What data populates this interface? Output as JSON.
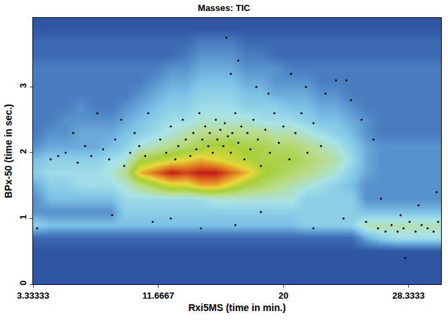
{
  "chart_data": {
    "type": "heatmap",
    "title": "Masses: TIC",
    "x_label": "Rxi5MS (time in min.)",
    "y_label": "BPx-50 (time in sec.)",
    "xlim": [
      3.33333,
      30.5
    ],
    "xticks": [
      3.33333,
      11.6667,
      20,
      28.3333
    ],
    "ylim": [
      0,
      4.05
    ],
    "yticks": [
      0,
      1,
      2,
      3
    ],
    "heatmap": {
      "x": [
        3.5,
        4.5,
        5.5,
        6.5,
        7.5,
        8.5,
        9.5,
        10.5,
        11.5,
        12.5,
        13.5,
        14.5,
        15.5,
        16.5,
        17.5,
        18.5,
        19.5,
        20.5,
        21.5,
        22.5,
        23.5,
        24.5,
        25.5,
        26.5,
        27.5,
        28.5,
        29.5,
        30.5
      ],
      "y": [
        0.1,
        0.3,
        0.5,
        0.7,
        0.9,
        1.1,
        1.3,
        1.5,
        1.7,
        1.9,
        2.1,
        2.3,
        2.5,
        2.7,
        2.9,
        3.1,
        3.3,
        3.5,
        3.7,
        3.9
      ],
      "z": [
        [
          0,
          0,
          0,
          0,
          0,
          0,
          0,
          0,
          0,
          0,
          0,
          0,
          0,
          0,
          0,
          0,
          0,
          0,
          0,
          0,
          0,
          0,
          0,
          0,
          0,
          0,
          0,
          0
        ],
        [
          0,
          0,
          0,
          0,
          0,
          0,
          0,
          0,
          0,
          0,
          0,
          0,
          0,
          0,
          0,
          0,
          0,
          0,
          0,
          0,
          0,
          0,
          0,
          0,
          0,
          0,
          0,
          0
        ],
        [
          0,
          0,
          0,
          0,
          0,
          0,
          0,
          0,
          0,
          0,
          0,
          0,
          0,
          0,
          0,
          0,
          0,
          0,
          0,
          0,
          0,
          0,
          0,
          0,
          0,
          0,
          0,
          0
        ],
        [
          0.5,
          0.5,
          0.5,
          0.5,
          0.5,
          0.5,
          0.5,
          0.5,
          0.5,
          0.5,
          0.5,
          0.5,
          0.5,
          0.5,
          0.5,
          0.5,
          0.5,
          0.5,
          0.5,
          0.5,
          0.5,
          0.5,
          2,
          3,
          3.5,
          3.5,
          3.5,
          3.5
        ],
        [
          3,
          2.5,
          2.5,
          2.5,
          2.5,
          2.5,
          2.5,
          2.5,
          2.5,
          2.5,
          2.5,
          2.5,
          2.5,
          2.5,
          2.5,
          2.5,
          2.5,
          2.5,
          3,
          3,
          3,
          3,
          4.5,
          4.5,
          4.5,
          4.5,
          4.5,
          4.5
        ],
        [
          1.5,
          1.5,
          1.5,
          1.5,
          1.5,
          1.5,
          3,
          3,
          3,
          3,
          3,
          3,
          3,
          3,
          3,
          3,
          3,
          3,
          3,
          3,
          3,
          3,
          2.5,
          2.5,
          2.5,
          2.5,
          2.5,
          2.5
        ],
        [
          1.5,
          2.5,
          2.5,
          2.5,
          2.5,
          2.5,
          3.5,
          3.5,
          3.5,
          3.5,
          3.5,
          3.5,
          4,
          4,
          4,
          4,
          4,
          4,
          3,
          3,
          3,
          3,
          1.5,
          1.5,
          1.5,
          1.5,
          1.5,
          1.5
        ],
        [
          2,
          3,
          3,
          3.5,
          3.5,
          3.5,
          4,
          5,
          6,
          7,
          7,
          8,
          8,
          7,
          6,
          5.5,
          5,
          4.5,
          4,
          3.5,
          3,
          2.5,
          1.5,
          1.5,
          1.5,
          1.5,
          1.5,
          1.5
        ],
        [
          3,
          3.5,
          3.5,
          3.5,
          3.5,
          4,
          5,
          8,
          9,
          10,
          9.5,
          10,
          10,
          9,
          8,
          6.5,
          6,
          5.5,
          5,
          4.5,
          4,
          3,
          2,
          1.5,
          1.5,
          1.5,
          1.5,
          1.5
        ],
        [
          2.5,
          3,
          3,
          3,
          3,
          3.5,
          4,
          6,
          6.5,
          7,
          7.5,
          8,
          7.5,
          7,
          6.5,
          6,
          6,
          6,
          5.5,
          5,
          4.5,
          3.5,
          2,
          1.5,
          1.5,
          1.5,
          1.5,
          1.5
        ],
        [
          1.5,
          2,
          2,
          2,
          2,
          2.5,
          3,
          4,
          4.5,
          5,
          5.5,
          6,
          6.5,
          6.5,
          6,
          6,
          5.5,
          5.5,
          5,
          4.5,
          4,
          3,
          2,
          1.5,
          1.5,
          1.5,
          1.5,
          1.5
        ],
        [
          1,
          1.5,
          1.5,
          2,
          2,
          2,
          2.5,
          3,
          3.5,
          4,
          4.5,
          5,
          5,
          5,
          5,
          5,
          4.5,
          4.5,
          4,
          3.5,
          3,
          2.5,
          1.5,
          1,
          1,
          1,
          1,
          1
        ],
        [
          1,
          1,
          1.5,
          1.5,
          1.5,
          1.5,
          2,
          2.5,
          3,
          3.5,
          3.5,
          4,
          4,
          4,
          4,
          3.5,
          3.5,
          3.5,
          3,
          2.5,
          2.5,
          2,
          1.5,
          1,
          1,
          1,
          1,
          1
        ],
        [
          1,
          1,
          1,
          1.5,
          1,
          1,
          1.5,
          2,
          2.5,
          3,
          3,
          3.5,
          3.5,
          3.5,
          3,
          3,
          3,
          2.5,
          2.5,
          2,
          2,
          1.5,
          1,
          1,
          1,
          1,
          1,
          1
        ],
        [
          1,
          1,
          1,
          1,
          1,
          1,
          1,
          1.5,
          2,
          2.5,
          2.5,
          3,
          3,
          3,
          2.5,
          2.5,
          2,
          2,
          2,
          1.5,
          1.5,
          1,
          1,
          1,
          1,
          1,
          1,
          1
        ],
        [
          1,
          1,
          1,
          1,
          1,
          1,
          1,
          1,
          1.5,
          2,
          2,
          2.5,
          2.5,
          2.5,
          2,
          2,
          1.5,
          1.5,
          1.5,
          1,
          1,
          1,
          1,
          1,
          1,
          1,
          1,
          1
        ],
        [
          1,
          1,
          1,
          1,
          1,
          1,
          1,
          1,
          1,
          1.5,
          1.5,
          2,
          2,
          2,
          1.5,
          1.5,
          1.5,
          1,
          1,
          1,
          1,
          1,
          1,
          1,
          1,
          1,
          1,
          1
        ],
        [
          0.5,
          0.5,
          0.5,
          0.5,
          0.5,
          0.5,
          0.5,
          0.5,
          0.5,
          0.5,
          1,
          1.5,
          1.5,
          1.5,
          1,
          1,
          0.5,
          0.5,
          0.5,
          0.5,
          0.5,
          0.5,
          0.5,
          0.5,
          0.5,
          0.5,
          0.5,
          0.5
        ],
        [
          0.5,
          0.5,
          0.5,
          0.5,
          0.5,
          0.5,
          0.5,
          0.5,
          0.5,
          0.5,
          0.5,
          1,
          1,
          1,
          0.5,
          0.5,
          0.5,
          0.5,
          0.5,
          0.5,
          0.5,
          0.5,
          0.5,
          0.5,
          0.5,
          0.5,
          0.5,
          0.5
        ],
        [
          0,
          0,
          0,
          0,
          0,
          0,
          0,
          0,
          0,
          0,
          0,
          0,
          0,
          0,
          0,
          0,
          0,
          0,
          0,
          0,
          0,
          0,
          0,
          0,
          0,
          0,
          0,
          0
        ]
      ],
      "zlim": [
        0,
        10
      ],
      "colors": [
        "#2f56a3",
        "#4f86c6",
        "#7cc1e6",
        "#a8e3e8",
        "#b9dc8a",
        "#a8cf3a",
        "#e8d83a",
        "#e07a20",
        "#c41a1a"
      ]
    },
    "series": [
      {
        "type": "scatter",
        "color": "#000000",
        "marker": "circle",
        "x": [
          3.6,
          4.5,
          5.0,
          5.5,
          6.0,
          6.3,
          6.8,
          7.2,
          7.6,
          8.0,
          8.4,
          8.8,
          9.2,
          9.4,
          9.8,
          10.1,
          10.4,
          10.8,
          11.0,
          11.3,
          11.8,
          12.2,
          12.5,
          12.8,
          13.0,
          13.3,
          13.5,
          13.8,
          14.0,
          14.2,
          14.4,
          14.6,
          14.8,
          15.0,
          15.1,
          15.3,
          15.5,
          15.6,
          15.8,
          16.0,
          16.1,
          16.3,
          16.5,
          16.6,
          16.8,
          17.0,
          17.2,
          17.4,
          17.6,
          17.8,
          18.0,
          18.3,
          18.5,
          18.8,
          19.1,
          19.4,
          19.7,
          20.0,
          20.4,
          20.8,
          21.2,
          21.6,
          22.0,
          22.5,
          16.2,
          16.5,
          17.0,
          18.2,
          19.0,
          20.5,
          21.5,
          22.8,
          23.5,
          24.2,
          24.5,
          25.2,
          26.0,
          14.5,
          16.8,
          18.5,
          22.0,
          24.0,
          25.5,
          26.3,
          26.8,
          27.2,
          27.6,
          28.0,
          28.4,
          28.8,
          29.2,
          29.6,
          30.0,
          30.3,
          27.8,
          29.0,
          30.2,
          28.1,
          26.5,
          12.5,
          8.6
        ],
        "y": [
          0.85,
          1.9,
          1.95,
          2.0,
          2.3,
          1.85,
          2.1,
          1.95,
          2.6,
          2.05,
          1.9,
          2.2,
          2.5,
          1.8,
          2.0,
          2.3,
          2.1,
          1.95,
          2.6,
          0.95,
          2.2,
          2.0,
          2.4,
          1.9,
          2.1,
          2.5,
          2.2,
          1.95,
          2.3,
          2.05,
          2.6,
          2.2,
          2.4,
          2.1,
          2.3,
          2.0,
          2.5,
          2.2,
          2.35,
          2.1,
          2.45,
          2.25,
          2.0,
          2.3,
          2.6,
          2.15,
          2.4,
          1.9,
          2.3,
          2.05,
          2.5,
          2.2,
          1.8,
          2.35,
          2.0,
          2.6,
          2.15,
          2.4,
          1.9,
          2.3,
          2.6,
          2.0,
          2.45,
          2.1,
          3.75,
          3.2,
          3.4,
          3.0,
          2.9,
          3.2,
          3.0,
          2.9,
          3.1,
          3.1,
          2.8,
          2.5,
          2.2,
          0.85,
          0.9,
          1.1,
          0.85,
          1.0,
          0.95,
          0.85,
          0.8,
          0.9,
          0.8,
          0.85,
          0.95,
          0.8,
          0.9,
          0.85,
          0.8,
          0.95,
          1.05,
          1.2,
          1.4,
          0.4,
          1.3,
          1.0,
          1.05
        ]
      }
    ]
  }
}
